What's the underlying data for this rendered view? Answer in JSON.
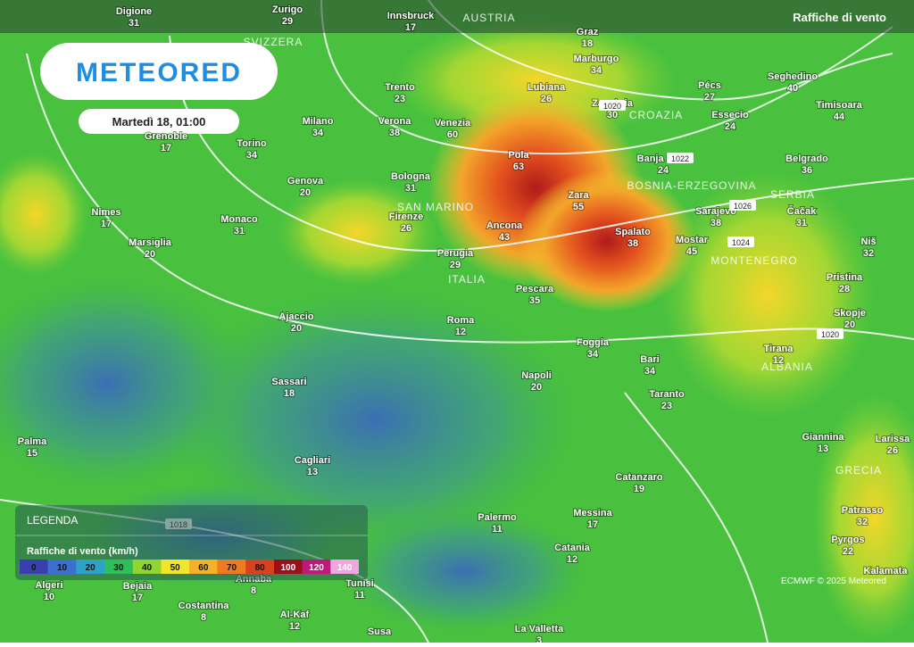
{
  "header": {
    "title": "Raffiche di vento",
    "logo": "METEORED",
    "date": "Martedì 18, 01:00"
  },
  "countries": [
    "AUSTRIA",
    "SVIZZERA",
    "CROAZIA",
    "BOSNIA-ERZEGOVINA",
    "SERBIA",
    "MONTENEGRO",
    "ITALIA",
    "ALBANIA",
    "GRECIA",
    "SAN MARINO"
  ],
  "cities": [
    {
      "name": "Digione",
      "value": 31
    },
    {
      "name": "Zurigo",
      "value": 29
    },
    {
      "name": "Innsbruck",
      "value": 17
    },
    {
      "name": "Graz",
      "value": 18
    },
    {
      "name": "Marburgo",
      "value": 34
    },
    {
      "name": "Lubiana",
      "value": 26
    },
    {
      "name": "Zagabria",
      "value": 30
    },
    {
      "name": "Pécs",
      "value": 27
    },
    {
      "name": "Seghedino",
      "value": 40
    },
    {
      "name": "Timisoara",
      "value": 44
    },
    {
      "name": "Trento",
      "value": 23
    },
    {
      "name": "Milano",
      "value": 34
    },
    {
      "name": "Verona",
      "value": 38
    },
    {
      "name": "Venezia",
      "value": 60
    },
    {
      "name": "Grenoble",
      "value": 17
    },
    {
      "name": "Torino",
      "value": 34
    },
    {
      "name": "Essecio",
      "value": 24
    },
    {
      "name": "Banja Luka",
      "value": 24
    },
    {
      "name": "Belgrado",
      "value": 36
    },
    {
      "name": "Pola",
      "value": 63
    },
    {
      "name": "Bologna",
      "value": 31
    },
    {
      "name": "Genova",
      "value": 20
    },
    {
      "name": "Zara",
      "value": 55
    },
    {
      "name": "Sarajevo",
      "value": 38
    },
    {
      "name": "Čačak",
      "value": 31
    },
    {
      "name": "Nimes",
      "value": 17
    },
    {
      "name": "Monaco",
      "value": 31
    },
    {
      "name": "Firenze",
      "value": 26
    },
    {
      "name": "Ancona",
      "value": 43
    },
    {
      "name": "Spalato",
      "value": 38
    },
    {
      "name": "Mostar",
      "value": 45
    },
    {
      "name": "Niš",
      "value": 32
    },
    {
      "name": "Marsiglia",
      "value": 20
    },
    {
      "name": "Perugia",
      "value": 29
    },
    {
      "name": "Pristina",
      "value": 28
    },
    {
      "name": "Pescara",
      "value": 35
    },
    {
      "name": "Ajaccio",
      "value": 20
    },
    {
      "name": "Skopje",
      "value": 20
    },
    {
      "name": "Roma",
      "value": 12
    },
    {
      "name": "Foggia",
      "value": 34
    },
    {
      "name": "Tirana",
      "value": 12
    },
    {
      "name": "Bari",
      "value": 34
    },
    {
      "name": "Sassari",
      "value": 18
    },
    {
      "name": "Napoli",
      "value": 20
    },
    {
      "name": "Taranto",
      "value": 23
    },
    {
      "name": "Palma",
      "value": 15
    },
    {
      "name": "Giannina",
      "value": 13
    },
    {
      "name": "Larissa",
      "value": 26
    },
    {
      "name": "Cagliari",
      "value": 13
    },
    {
      "name": "Catanzaro",
      "value": 19
    },
    {
      "name": "Palermo",
      "value": 11
    },
    {
      "name": "Messina",
      "value": 17
    },
    {
      "name": "Patrasso",
      "value": 32
    },
    {
      "name": "Catania",
      "value": 12
    },
    {
      "name": "Pyrgos",
      "value": 22
    },
    {
      "name": "Kalamata"
    },
    {
      "name": "Algeri",
      "value": 10
    },
    {
      "name": "Bejaia",
      "value": 17
    },
    {
      "name": "Annaba",
      "value": 8
    },
    {
      "name": "Tunisi",
      "value": 11
    },
    {
      "name": "Costantina",
      "value": 8
    },
    {
      "name": "Al-Kaf",
      "value": 12
    },
    {
      "name": "Susa"
    },
    {
      "name": "La Valletta",
      "value": 3
    }
  ],
  "isobars": [
    1018,
    1020,
    1022,
    1026,
    1024,
    1020
  ],
  "legend": {
    "title": "LEGENDA",
    "subtitle": "Raffiche di vento (km/h)",
    "steps": [
      {
        "value": 0,
        "color": "#3a3fae"
      },
      {
        "value": 10,
        "color": "#3b6fd0"
      },
      {
        "value": 20,
        "color": "#2fa2c8"
      },
      {
        "value": 30,
        "color": "#2fbf5a"
      },
      {
        "value": 40,
        "color": "#8fd630"
      },
      {
        "value": 50,
        "color": "#f2e62a"
      },
      {
        "value": 60,
        "color": "#f3b22a"
      },
      {
        "value": 70,
        "color": "#ee7a22"
      },
      {
        "value": 80,
        "color": "#d9401e"
      },
      {
        "value": 100,
        "color": "#9a0f1a"
      },
      {
        "value": 120,
        "color": "#c0187a"
      },
      {
        "value": 140,
        "color": "#f0a6e0"
      }
    ]
  },
  "credit": "ECMWF © 2025 Meteored"
}
